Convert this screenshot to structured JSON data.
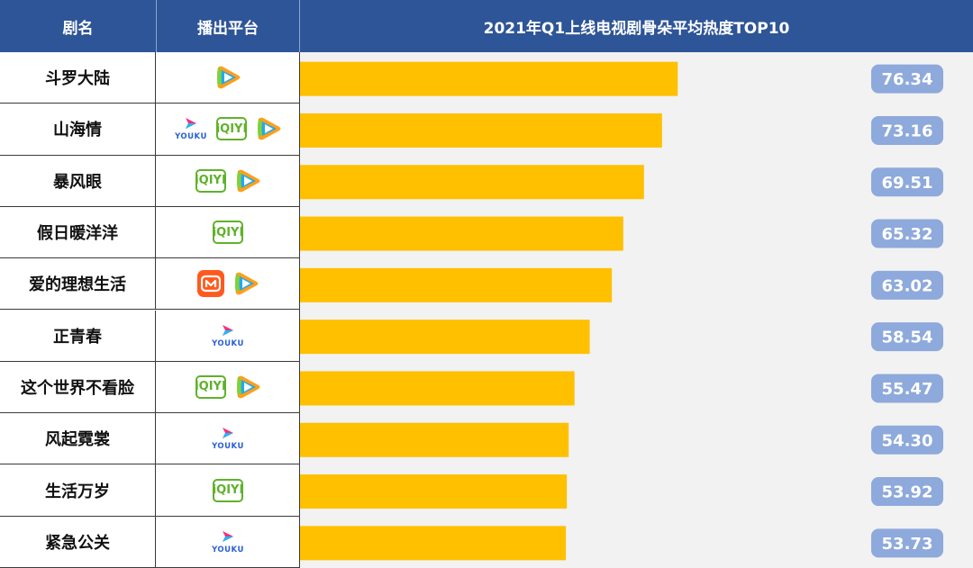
{
  "header": {
    "col_name": "剧名",
    "col_platform": "播出平台",
    "chart_title": "2021年Q1上线电视剧骨朵平均热度TOP10"
  },
  "colors": {
    "header_bg": "#2e5597",
    "bar": "#ffc000",
    "label_bg": "#8ea9db",
    "plot_bg": "#f2f2f2"
  },
  "platforms": {
    "tencent": "tencent-video-icon",
    "iqiyi": "iqiyi-icon",
    "youku": "youku-icon",
    "mgtv": "mgtv-icon"
  },
  "icon_text": {
    "iqiyi": "iQIYI",
    "youku": "YOUKU"
  },
  "rows": [
    {
      "name": "斗罗大陆",
      "platforms": [
        "tencent"
      ]
    },
    {
      "name": "山海情",
      "platforms": [
        "youku",
        "iqiyi",
        "tencent"
      ]
    },
    {
      "name": "暴风眼",
      "platforms": [
        "iqiyi",
        "tencent"
      ]
    },
    {
      "name": "假日暖洋洋",
      "platforms": [
        "iqiyi"
      ]
    },
    {
      "name": "爱的理想生活",
      "platforms": [
        "mgtv",
        "tencent"
      ]
    },
    {
      "name": "正青春",
      "platforms": [
        "youku"
      ]
    },
    {
      "name": "这个世界不看脸",
      "platforms": [
        "iqiyi",
        "tencent"
      ]
    },
    {
      "name": "风起霓裳",
      "platforms": [
        "youku"
      ]
    },
    {
      "name": "生活万岁",
      "platforms": [
        "iqiyi"
      ]
    },
    {
      "name": "紧急公关",
      "platforms": [
        "youku"
      ]
    }
  ],
  "chart_data": {
    "type": "bar",
    "orientation": "horizontal",
    "title": "2021年Q1上线电视剧骨朵平均热度TOP10",
    "categories": [
      "斗罗大陆",
      "山海情",
      "暴风眼",
      "假日暖洋洋",
      "爱的理想生活",
      "正青春",
      "这个世界不看脸",
      "风起霓裳",
      "生活万岁",
      "紧急公关"
    ],
    "values": [
      76.34,
      73.16,
      69.51,
      65.32,
      63.02,
      58.54,
      55.47,
      54.3,
      53.92,
      53.73
    ],
    "value_labels": [
      "76.34",
      "73.16",
      "69.51",
      "65.32",
      "63.02",
      "58.54",
      "55.47",
      "54.30",
      "53.92",
      "53.73"
    ],
    "xlim": [
      0,
      136
    ],
    "grid": false,
    "legend": "none"
  }
}
